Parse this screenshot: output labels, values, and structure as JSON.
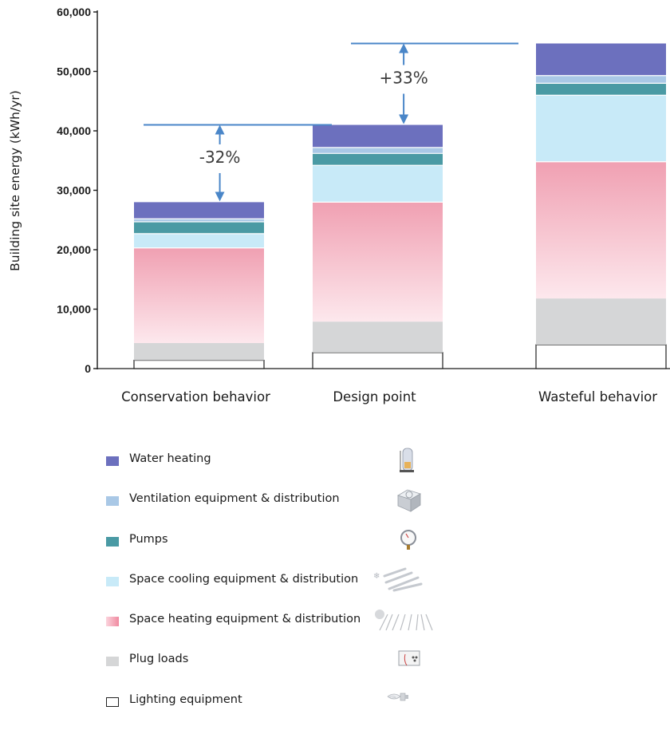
{
  "chart_data": {
    "type": "bar",
    "stacked": true,
    "categories": [
      "Conservation behavior",
      "Design point",
      "Wasteful behavior"
    ],
    "ylabel": "Building site energy (kWh/yr)",
    "ylim": [
      0,
      60000
    ],
    "yticks": [
      "0",
      "10,000",
      "20,000",
      "30,000",
      "40,000",
      "50,000",
      "60,000"
    ],
    "ytick_values": [
      0,
      10000,
      20000,
      30000,
      40000,
      50000,
      60000
    ],
    "series": [
      {
        "name": "Lighting equipment",
        "values": [
          1400,
          2700,
          4000
        ],
        "color": "#ffffff"
      },
      {
        "name": "Plug loads",
        "values": [
          2900,
          5200,
          7800
        ],
        "color": "#d5d6d7"
      },
      {
        "name": "Space heating equipment & distribution",
        "values": [
          16000,
          20100,
          23000
        ],
        "color": "#f0a0b2"
      },
      {
        "name": "Space cooling equipment & distribution",
        "values": [
          2400,
          6200,
          11200
        ],
        "color": "#c8eaf8"
      },
      {
        "name": "Pumps",
        "values": [
          2000,
          2000,
          2000
        ],
        "color": "#4a9aa4"
      },
      {
        "name": "Ventilation equipment & distribution",
        "values": [
          500,
          1000,
          1300
        ],
        "color": "#a9c8e6"
      },
      {
        "name": "Water heating",
        "values": [
          2800,
          3800,
          5400
        ],
        "color": "#6c70be"
      }
    ],
    "annotations": [
      {
        "text": "-32%",
        "from_category": "Design point",
        "to_category": "Conservation behavior"
      },
      {
        "text": "+33%",
        "from_category": "Design point",
        "to_category": "Wasteful behavior"
      }
    ],
    "legend": [
      {
        "label": "Water heating",
        "color": "#6c70be",
        "icon": "water-heater-icon"
      },
      {
        "label": "Ventilation equipment & distribution",
        "color": "#a9c8e6",
        "icon": "ventilation-unit-icon"
      },
      {
        "label": "Pumps",
        "color": "#4a9aa4",
        "icon": "pressure-gauge-icon"
      },
      {
        "label": "Space cooling equipment & distribution",
        "color": "#c8eaf8",
        "icon": "cooling-ducts-icon"
      },
      {
        "label": "Space heating equipment & distribution",
        "color": "#f0a0b2",
        "icon": "heating-pipes-icon"
      },
      {
        "label": "Plug loads",
        "color": "#d5d6d7",
        "icon": "power-outlet-icon"
      },
      {
        "label": "Lighting equipment",
        "color": "#ffffff",
        "icon": "light-bulb-icon"
      }
    ],
    "legend_position": "bottom-left",
    "grid": false
  }
}
